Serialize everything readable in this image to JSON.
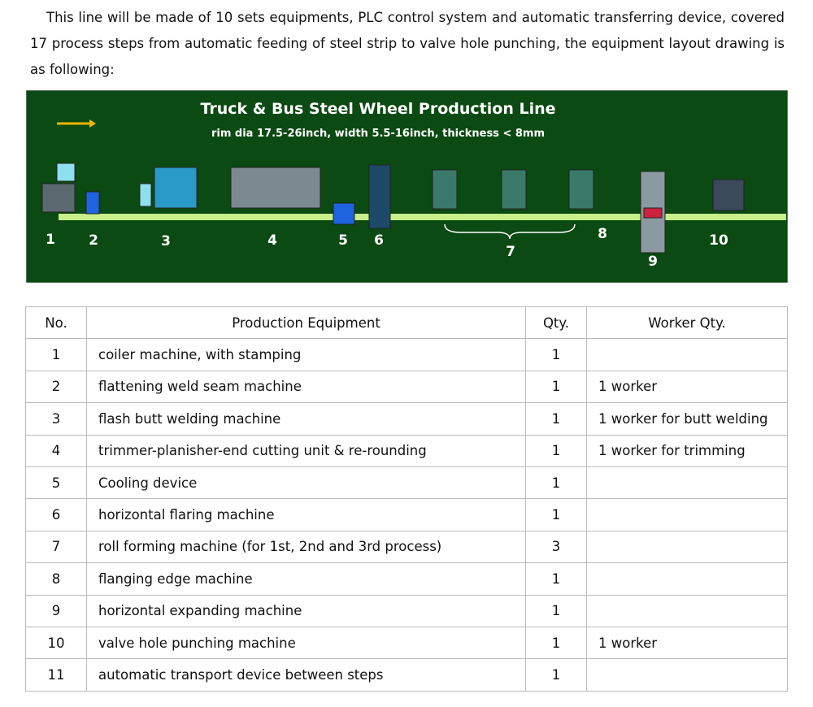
{
  "intro": "This line will be made of 10 sets equipments, PLC control system and automatic transferring device, covered 17 process steps from automatic feeding of steel strip to valve hole punching, the equipment layout drawing is as following:",
  "diagram": {
    "title": "Truck & Bus Steel Wheel Production Line",
    "subtitle": "rim dia 17.5-26inch, width 5.5-16inch, thickness < 8mm",
    "labels": [
      "1",
      "2",
      "3",
      "4",
      "5",
      "6",
      "7",
      "8",
      "9",
      "10"
    ]
  },
  "table": {
    "header": [
      "No.",
      "Production Equipment",
      "Qty.",
      "Worker Qty."
    ],
    "rows": [
      [
        "1",
        "coiler machine, with stamping",
        "1",
        ""
      ],
      [
        "2",
        "flattening weld seam machine",
        "1",
        "1 worker"
      ],
      [
        "3",
        "flash butt welding machine",
        "1",
        "1 worker for butt welding"
      ],
      [
        "4",
        "trimmer-planisher-end cutting unit & re-rounding",
        "1",
        "1 worker for trimming"
      ],
      [
        "5",
        "Cooling device",
        "1",
        ""
      ],
      [
        "6",
        "horizontal flaring machine",
        "1",
        ""
      ],
      [
        "7",
        "roll forming machine (for 1st, 2nd and 3rd process)",
        "3",
        ""
      ],
      [
        "8",
        "flanging edge machine",
        "1",
        ""
      ],
      [
        "9",
        "horizontal expanding machine",
        "1",
        ""
      ],
      [
        "10",
        "valve hole punching machine",
        "1",
        "1 worker"
      ],
      [
        "11",
        "automatic transport device between steps",
        "1",
        ""
      ]
    ]
  }
}
